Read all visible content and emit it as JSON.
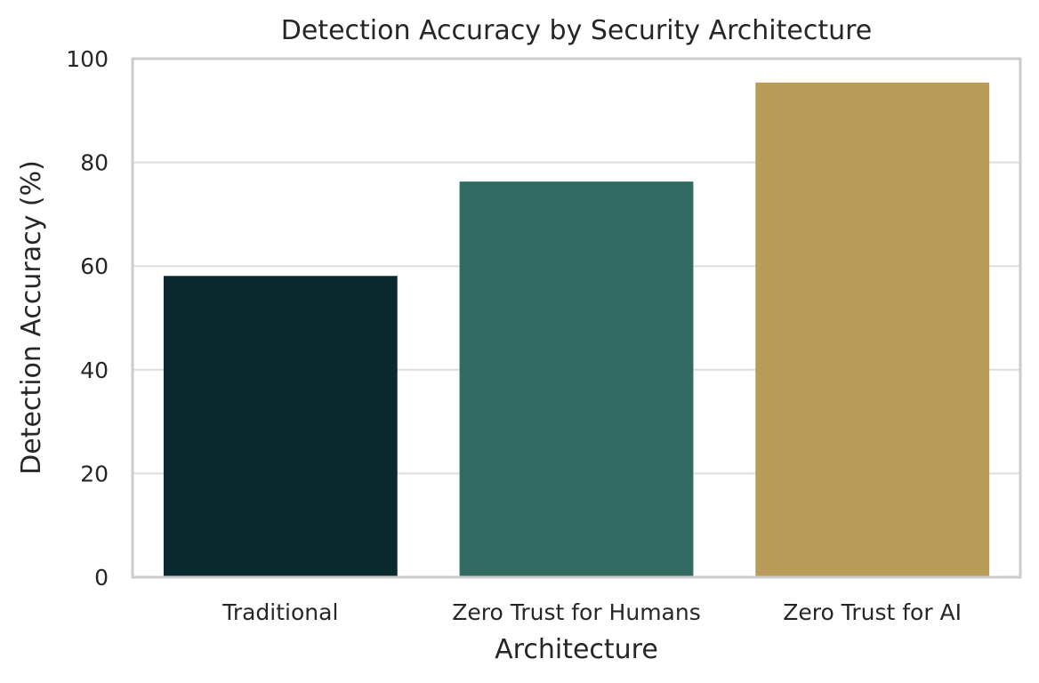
{
  "chart_data": {
    "type": "bar",
    "title": "Detection Accuracy by Security Architecture",
    "xlabel": "Architecture",
    "ylabel": "Detection Accuracy (%)",
    "categories": [
      "Traditional",
      "Zero Trust for Humans",
      "Zero Trust for AI"
    ],
    "values": [
      58.1,
      76.3,
      95.4
    ],
    "colors": [
      "#0a2a30",
      "#336b63",
      "#b99c5a"
    ],
    "ylim": [
      0,
      100
    ],
    "yticks": [
      0,
      20,
      40,
      60,
      80,
      100
    ],
    "grid": "horizontal",
    "legend": "none"
  }
}
